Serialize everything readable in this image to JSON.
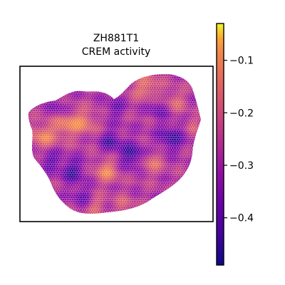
{
  "chart_data": {
    "type": "heatmap",
    "title": "ZH881T1",
    "subtitle": "CREM activity",
    "xlabel": "",
    "ylabel": "",
    "grid": false,
    "colormap": "plasma",
    "colorbar": {
      "vmin": -0.49,
      "vmax": -0.03,
      "ticks": [
        -0.1,
        -0.2,
        -0.3,
        -0.4
      ],
      "tick_labels": [
        "−0.1",
        "−0.2",
        "−0.3",
        "−0.4"
      ]
    },
    "value_range": [
      -0.49,
      -0.03
    ]
  }
}
